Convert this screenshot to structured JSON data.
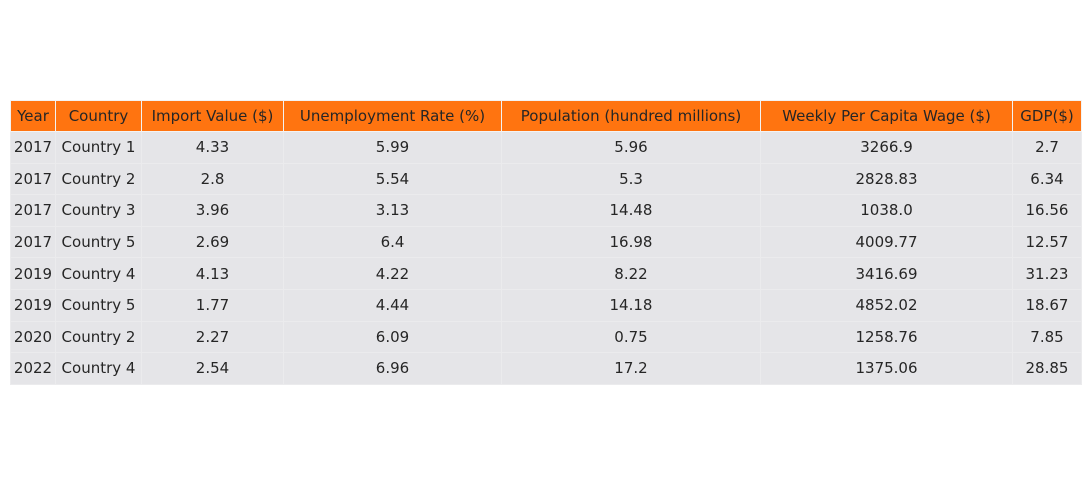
{
  "colors": {
    "header_background": "#ff7410",
    "cell_background": "#e5e5e8",
    "text": "#262626"
  },
  "chart_data": {
    "type": "table",
    "columns": [
      "Year",
      "Country",
      "Import Value ($)",
      "Unemployment Rate (%)",
      "Population (hundred millions)",
      "Weekly Per Capita Wage ($)",
      "GDP($)"
    ],
    "rows": [
      [
        "2017",
        "Country 1",
        "4.33",
        "5.99",
        "5.96",
        "3266.9",
        "2.7"
      ],
      [
        "2017",
        "Country 2",
        "2.8",
        "5.54",
        "5.3",
        "2828.83",
        "6.34"
      ],
      [
        "2017",
        "Country 3",
        "3.96",
        "3.13",
        "14.48",
        "1038.0",
        "16.56"
      ],
      [
        "2017",
        "Country 5",
        "2.69",
        "6.4",
        "16.98",
        "4009.77",
        "12.57"
      ],
      [
        "2019",
        "Country 4",
        "4.13",
        "4.22",
        "8.22",
        "3416.69",
        "31.23"
      ],
      [
        "2019",
        "Country 5",
        "1.77",
        "4.44",
        "14.18",
        "4852.02",
        "18.67"
      ],
      [
        "2020",
        "Country 2",
        "2.27",
        "6.09",
        "0.75",
        "1258.76",
        "7.85"
      ],
      [
        "2022",
        "Country 4",
        "2.54",
        "6.96",
        "17.2",
        "1375.06",
        "28.85"
      ]
    ]
  }
}
